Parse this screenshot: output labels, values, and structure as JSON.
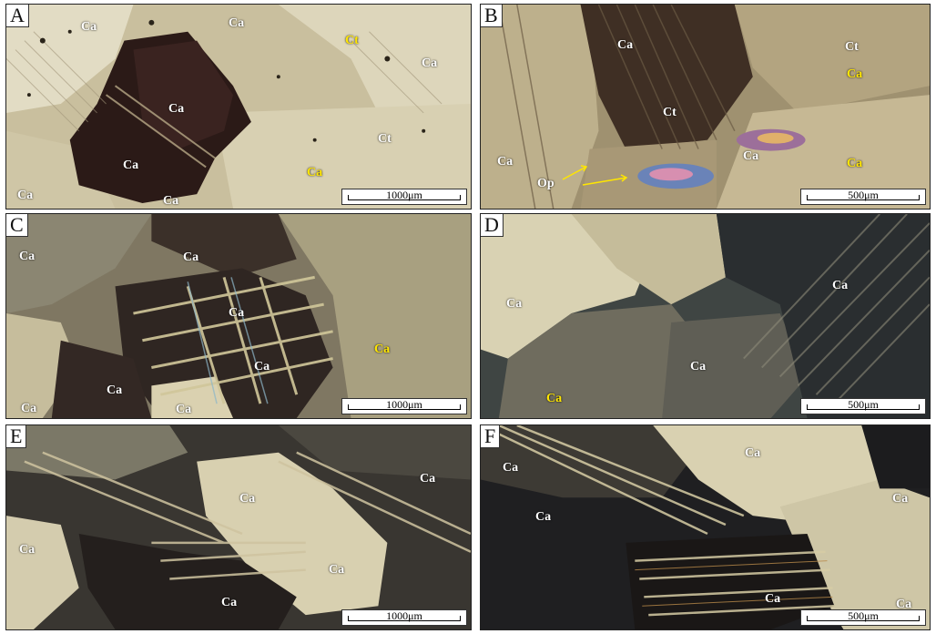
{
  "panels": [
    {
      "label": "A",
      "scale": "1000μm",
      "minerals": [
        {
          "text": "Ca",
          "color": "white"
        },
        {
          "text": "Ca",
          "color": "white"
        },
        {
          "text": "Ct",
          "color": "yellow"
        },
        {
          "text": "Ca",
          "color": "white"
        },
        {
          "text": "Ca",
          "color": "white"
        },
        {
          "text": "Ct",
          "color": "white"
        },
        {
          "text": "Ca",
          "color": "white"
        },
        {
          "text": "Ca",
          "color": "yellow"
        },
        {
          "text": "Ca",
          "color": "white"
        },
        {
          "text": "Ca",
          "color": "white"
        }
      ]
    },
    {
      "label": "B",
      "scale": "500μm",
      "minerals": [
        {
          "text": "Ca",
          "color": "white"
        },
        {
          "text": "Ct",
          "color": "white"
        },
        {
          "text": "Ca",
          "color": "yellow"
        },
        {
          "text": "Ct",
          "color": "white"
        },
        {
          "text": "Ca",
          "color": "white"
        },
        {
          "text": "Ca",
          "color": "white"
        },
        {
          "text": "Op",
          "color": "white"
        },
        {
          "text": "Ca",
          "color": "yellow"
        }
      ]
    },
    {
      "label": "C",
      "scale": "1000μm",
      "minerals": [
        {
          "text": "Ca",
          "color": "white"
        },
        {
          "text": "Ca",
          "color": "white"
        },
        {
          "text": "Ca",
          "color": "white"
        },
        {
          "text": "Ca",
          "color": "yellow"
        },
        {
          "text": "Ca",
          "color": "white"
        },
        {
          "text": "Ca",
          "color": "white"
        },
        {
          "text": "Ca",
          "color": "white"
        },
        {
          "text": "Ca",
          "color": "white"
        }
      ]
    },
    {
      "label": "D",
      "scale": "500μm",
      "minerals": [
        {
          "text": "Ca",
          "color": "white"
        },
        {
          "text": "Ca",
          "color": "white"
        },
        {
          "text": "Ca",
          "color": "white"
        },
        {
          "text": "Ca",
          "color": "yellow"
        }
      ]
    },
    {
      "label": "E",
      "scale": "1000μm",
      "minerals": [
        {
          "text": "Ca",
          "color": "white"
        },
        {
          "text": "Ca",
          "color": "white"
        },
        {
          "text": "Ca",
          "color": "white"
        },
        {
          "text": "Ca",
          "color": "white"
        },
        {
          "text": "Ca",
          "color": "white"
        }
      ]
    },
    {
      "label": "F",
      "scale": "500μm",
      "minerals": [
        {
          "text": "Ca",
          "color": "white"
        },
        {
          "text": "Ca",
          "color": "white"
        },
        {
          "text": "Ca",
          "color": "white"
        },
        {
          "text": "Ca",
          "color": "white"
        },
        {
          "text": "Ca",
          "color": "white"
        },
        {
          "text": "Ca",
          "color": "white"
        }
      ]
    }
  ],
  "colors": {
    "label_white": "#ffffff",
    "label_yellow": "#ffe600"
  }
}
